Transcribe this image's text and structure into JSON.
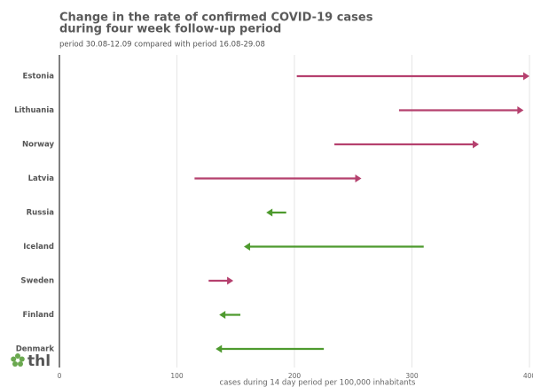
{
  "chart_data": {
    "type": "arrow",
    "title": [
      "Change in the rate of confirmed COVID-19 cases",
      "during four week follow-up period"
    ],
    "subtitle": "period 30.08-12.09 compared with period 16.08-29.08",
    "categories": [
      "Estonia",
      "Lithuania",
      "Norway",
      "Latvia",
      "Russia",
      "Iceland",
      "Sweden",
      "Finland",
      "Denmark"
    ],
    "start_values": [
      202,
      289,
      234,
      115,
      193,
      310,
      127,
      154,
      225
    ],
    "end_values": [
      400,
      395,
      357,
      257,
      176,
      157,
      148,
      136,
      133
    ],
    "increase_color": "#b5406e",
    "decrease_color": "#4e9a2e",
    "xlabel": "cases during 14 day period per 100,000 inhabitants",
    "xlim": [
      0,
      400
    ],
    "xticks": [
      0,
      100,
      200,
      300,
      400
    ],
    "grid": true,
    "logo": "thl"
  }
}
